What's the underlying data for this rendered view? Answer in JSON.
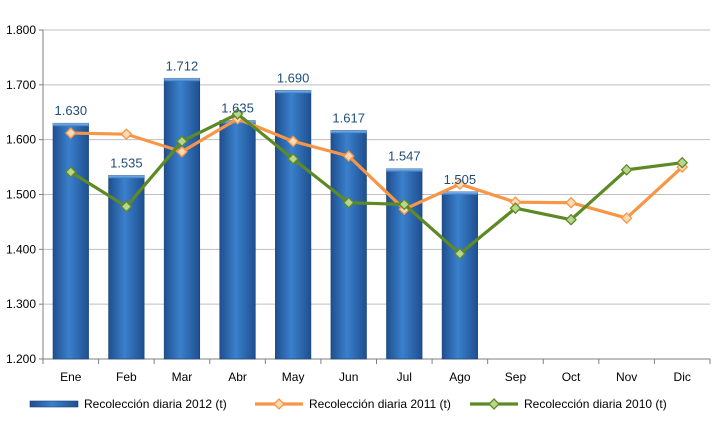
{
  "chart_data": {
    "type": "bar",
    "categories": [
      "Ene",
      "Feb",
      "Mar",
      "Abr",
      "May",
      "Jun",
      "Jul",
      "Ago",
      "Sep",
      "Oct",
      "Nov",
      "Dic"
    ],
    "ylim": [
      1200,
      1800
    ],
    "yticks": [
      1200,
      1300,
      1400,
      1500,
      1600,
      1700,
      1800
    ],
    "ytick_labels": [
      "1.200",
      "1.300",
      "1.400",
      "1.500",
      "1.600",
      "1.700",
      "1.800"
    ],
    "grid": true,
    "legend_position": "bottom",
    "series": [
      {
        "name": "Recolección diaria  2012 (t)",
        "type": "bar",
        "color": "#2e6fb7",
        "values": [
          1630,
          1535,
          1712,
          1635,
          1690,
          1617,
          1547,
          1505,
          null,
          null,
          null,
          null
        ],
        "data_labels": [
          "1.630",
          "1.535",
          "1.712",
          "1.635",
          "1.690",
          "1.617",
          "1.547",
          "1.505"
        ]
      },
      {
        "name": "Recolección diaria  2011 (t)",
        "type": "line",
        "color": "#f79646",
        "values": [
          1612,
          1610,
          1578,
          1638,
          1597,
          1570,
          1473,
          1519,
          1486,
          1485,
          1457,
          1550
        ]
      },
      {
        "name": "Recolección diaria  2010 (t)",
        "type": "line",
        "color": "#5e8a26",
        "values": [
          1541,
          1478,
          1597,
          1647,
          1565,
          1485,
          1482,
          1392,
          1475,
          1454,
          1545,
          1558
        ]
      }
    ]
  }
}
